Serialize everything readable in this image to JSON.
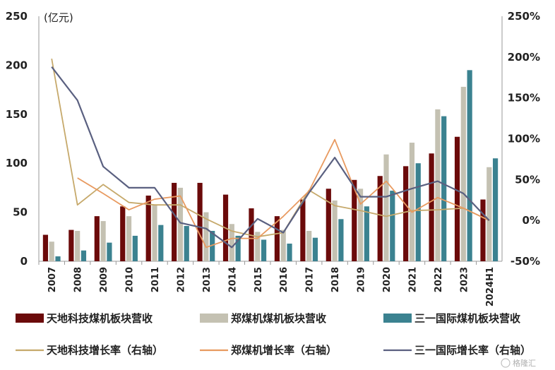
{
  "chart_data": {
    "type": "bar",
    "unit_label": "(亿元)",
    "categories": [
      "2007",
      "2008",
      "2009",
      "2010",
      "2011",
      "2012",
      "2013",
      "2014",
      "2015",
      "2016",
      "2017",
      "2018",
      "2019",
      "2020",
      "2021",
      "2022",
      "2023",
      "2024H1"
    ],
    "y_left": {
      "min": 0,
      "max": 250,
      "ticks": [
        0,
        50,
        100,
        150,
        200,
        250
      ]
    },
    "y_right": {
      "min": -50,
      "max": 250,
      "ticks": [
        "-50%",
        "0%",
        "50%",
        "100%",
        "150%",
        "200%",
        "250%"
      ]
    },
    "bar_series": [
      {
        "name": "天地科技煤机板块营收",
        "color": "#6b0a0a",
        "values": [
          27,
          32,
          46,
          56,
          67,
          80,
          80,
          68,
          54,
          46,
          63,
          74,
          83,
          87,
          97,
          110,
          127,
          63
        ]
      },
      {
        "name": "郑煤机煤机板块营收",
        "color": "#c4c1b2",
        "values": [
          20,
          31,
          41,
          46,
          58,
          75,
          50,
          38,
          30,
          32,
          31,
          62,
          74,
          109,
          121,
          155,
          178,
          96
        ]
      },
      {
        "name": "三一国际煤机板块营收",
        "color": "#3b8290",
        "values": [
          5,
          11,
          19,
          26,
          37,
          36,
          31,
          26,
          22,
          18,
          24,
          43,
          56,
          72,
          100,
          148,
          195,
          105
        ]
      }
    ],
    "line_series": [
      {
        "name": "天地科技增长率（右轴）",
        "color": "#c6a96b",
        "values": [
          198,
          19,
          44,
          22,
          19,
          19,
          2,
          -13,
          -20,
          -15,
          37,
          18,
          12,
          5,
          12,
          13,
          15,
          0
        ]
      },
      {
        "name": "郑煤机增长率（右轴）",
        "color": "#e89a60",
        "values": [
          null,
          52,
          33,
          13,
          26,
          30,
          -33,
          -22,
          -22,
          5,
          36,
          99,
          20,
          48,
          10,
          28,
          15,
          0
        ]
      },
      {
        "name": "三一国际增长率（右轴）",
        "color": "#5a6080",
        "values": [
          188,
          147,
          66,
          40,
          40,
          -3,
          -10,
          -33,
          2,
          -15,
          34,
          77,
          29,
          29,
          39,
          48,
          33,
          0
        ]
      }
    ],
    "grid": false,
    "legend_position": "bottom"
  },
  "watermark": "格隆汇"
}
